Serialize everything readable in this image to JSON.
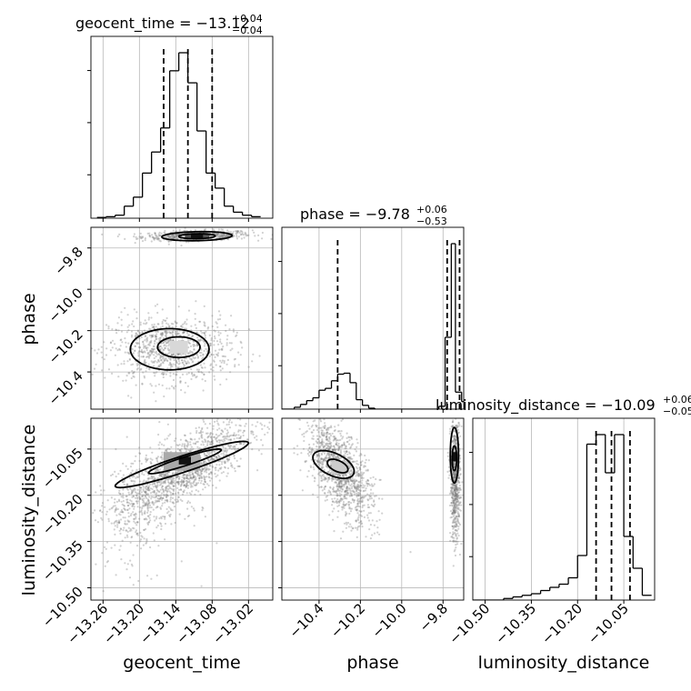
{
  "chart_data": {
    "type": "corner",
    "parameters": [
      "geocent_time",
      "phase",
      "luminosity_distance"
    ],
    "grid": true,
    "titles": [
      {
        "param": "geocent_time",
        "prefix": "geocent_time = −13.12",
        "sup": "+0.04",
        "sub": "−0.04"
      },
      {
        "param": "phase",
        "prefix": "phase = −9.78",
        "sup": "+0.06",
        "sub": "−0.53"
      },
      {
        "param": "luminosity_distance",
        "prefix": "luminosity_distance = −10.09",
        "sup": "+0.06",
        "sub": "−0.05"
      }
    ],
    "axis_labels": {
      "x": [
        "geocent_time",
        "phase",
        "luminosity_distance"
      ],
      "y": [
        "phase",
        "luminosity_distance"
      ]
    },
    "ranges": {
      "geocent_time": [
        -13.28,
        -12.98
      ],
      "phase": [
        -10.58,
        -9.7
      ],
      "luminosity_distance": [
        -10.54,
        -9.95
      ]
    },
    "ticks": {
      "geocent_time": {
        "values": [
          -13.26,
          -13.2,
          -13.14,
          -13.08,
          -13.02
        ],
        "labels": [
          "−13.26",
          "−13.20",
          "−13.14",
          "−13.08",
          "−13.02"
        ]
      },
      "phase": {
        "values": [
          -10.4,
          -10.2,
          -10.0,
          -9.8
        ],
        "labels": [
          "−10.4",
          "−10.2",
          "−10.0",
          "−9.8"
        ]
      },
      "luminosity_distance": {
        "values": [
          -10.5,
          -10.35,
          -10.2,
          -10.05
        ],
        "labels": [
          "−10.50",
          "−10.35",
          "−10.20",
          "−10.05"
        ]
      }
    },
    "quantiles": {
      "geocent_time": [
        -13.16,
        -13.12,
        -13.08
      ],
      "phase": [
        -10.31,
        -9.78,
        -9.72
      ],
      "luminosity_distance": [
        -10.14,
        -10.09,
        -10.03
      ]
    },
    "histograms": {
      "geocent_time": {
        "bin_edges": [
          -13.27,
          -13.255,
          -13.24,
          -13.225,
          -13.21,
          -13.195,
          -13.18,
          -13.165,
          -13.15,
          -13.135,
          -13.12,
          -13.105,
          -13.09,
          -13.075,
          -13.06,
          -13.045,
          -13.03,
          -13.015,
          -13.0
        ],
        "counts": [
          0.5,
          1,
          2,
          8,
          14,
          30,
          44,
          60,
          98,
          110,
          90,
          58,
          30,
          20,
          8,
          4,
          2,
          1
        ]
      },
      "phase": {
        "bin_edges": [
          -10.58,
          -10.52,
          -10.49,
          -10.46,
          -10.43,
          -10.4,
          -10.37,
          -10.34,
          -10.31,
          -10.28,
          -10.25,
          -10.22,
          -10.19,
          -10.16,
          -10.13,
          -9.82,
          -9.79,
          -9.76,
          -9.74,
          -9.71,
          -9.7
        ],
        "counts": [
          0,
          2,
          5,
          9,
          12,
          20,
          22,
          30,
          37,
          38,
          28,
          10,
          4,
          1,
          0,
          3,
          76,
          175,
          18,
          8
        ]
      },
      "luminosity_distance": {
        "bin_edges": [
          -10.54,
          -10.44,
          -10.41,
          -10.38,
          -10.35,
          -10.32,
          -10.29,
          -10.26,
          -10.23,
          -10.2,
          -10.17,
          -10.14,
          -10.11,
          -10.08,
          -10.05,
          -10.02,
          -9.99,
          -9.96
        ],
        "counts": [
          0,
          1,
          2,
          3,
          4,
          6,
          8,
          10,
          14,
          28,
          98,
          104,
          80,
          104,
          40,
          20,
          3
        ]
      }
    }
  }
}
